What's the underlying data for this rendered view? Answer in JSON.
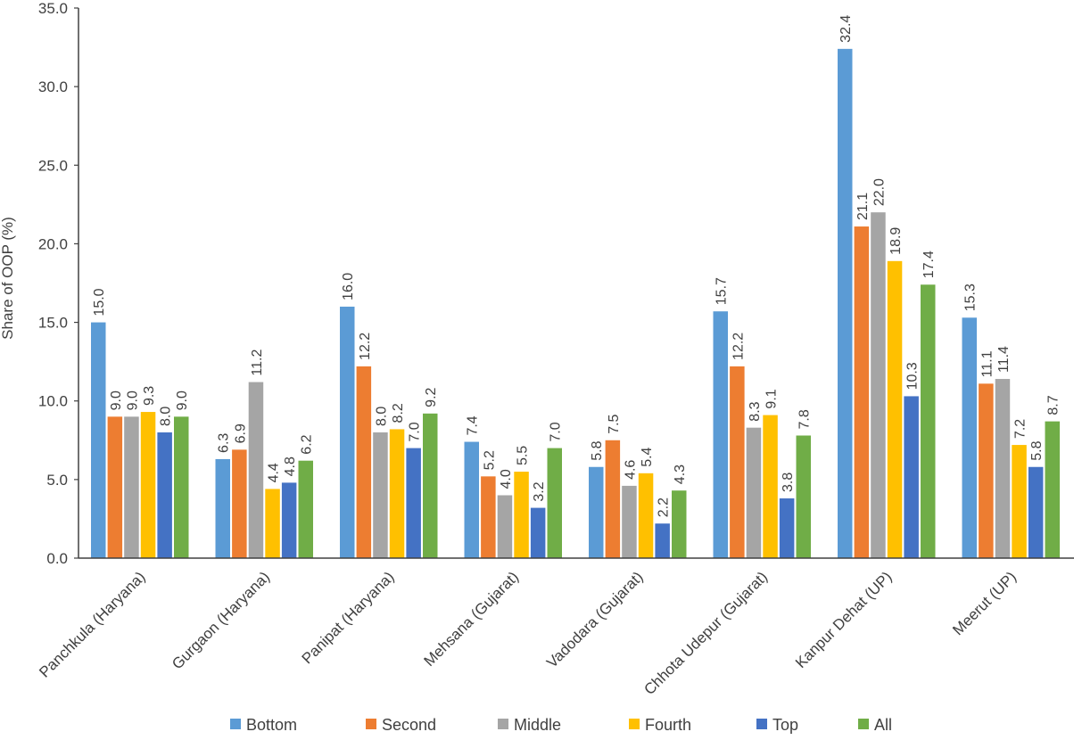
{
  "chart_data": {
    "type": "bar",
    "title": "",
    "xlabel": "",
    "ylabel": "Share of OOP (%)",
    "ylim": [
      0,
      35
    ],
    "yticks": [
      "0.0",
      "5.0",
      "10.0",
      "15.0",
      "20.0",
      "25.0",
      "30.0",
      "35.0"
    ],
    "grid": false,
    "legend_position": "bottom",
    "categories": [
      "Panchkula (Haryana)",
      "Gurgaon (Haryana)",
      "Panipat (Haryana)",
      "Mehsana (Gujarat)",
      "Vadodara (Gujarat)",
      "Chhota Udepur (Gujarat)",
      "Kanpur Dehat (UP)",
      "Meerut (UP)"
    ],
    "series": [
      {
        "name": "Bottom",
        "color": "#5b9bd5",
        "values": [
          15.0,
          6.3,
          16.0,
          7.4,
          5.8,
          15.7,
          32.4,
          15.3
        ],
        "labels": [
          "15.0",
          "6.3",
          "16.0",
          "7.4",
          "5.8",
          "15.7",
          "32.4",
          "15.3"
        ]
      },
      {
        "name": "Second",
        "color": "#ed7d31",
        "values": [
          9.0,
          6.9,
          12.2,
          5.2,
          7.5,
          12.2,
          21.1,
          11.1
        ],
        "labels": [
          "9.0",
          "6.9",
          "12.2",
          "5.2",
          "7.5",
          "12.2",
          "21.1",
          "11.1"
        ]
      },
      {
        "name": "Middle",
        "color": "#a5a5a5",
        "values": [
          9.0,
          11.2,
          8.0,
          4.0,
          4.6,
          8.3,
          22.0,
          11.4
        ],
        "labels": [
          "9.0",
          "11.2",
          "8.0",
          "4.0",
          "4.6",
          "8.3",
          "22.0",
          "11.4"
        ]
      },
      {
        "name": "Fourth",
        "color": "#ffc000",
        "values": [
          9.3,
          4.4,
          8.2,
          5.5,
          5.4,
          9.1,
          18.9,
          7.2
        ],
        "labels": [
          "9.3",
          "4.4",
          "8.2",
          "5.5",
          "5.4",
          "9.1",
          "18.9",
          "7.2"
        ]
      },
      {
        "name": "Top",
        "color": "#4472c4",
        "values": [
          8.0,
          4.8,
          7.0,
          3.2,
          2.2,
          3.8,
          10.3,
          5.8
        ],
        "labels": [
          "8.0",
          "4.8",
          "7.0",
          "3.2",
          "2.2",
          "3.8",
          "10.3",
          "5.8"
        ]
      },
      {
        "name": "All",
        "color": "#70ad47",
        "values": [
          9.0,
          6.2,
          9.2,
          7.0,
          4.3,
          7.8,
          17.4,
          8.7
        ],
        "labels": [
          "9.0",
          "6.2",
          "9.2",
          "7.0",
          "4.3",
          "7.8",
          "17.4",
          "8.7"
        ]
      }
    ]
  }
}
